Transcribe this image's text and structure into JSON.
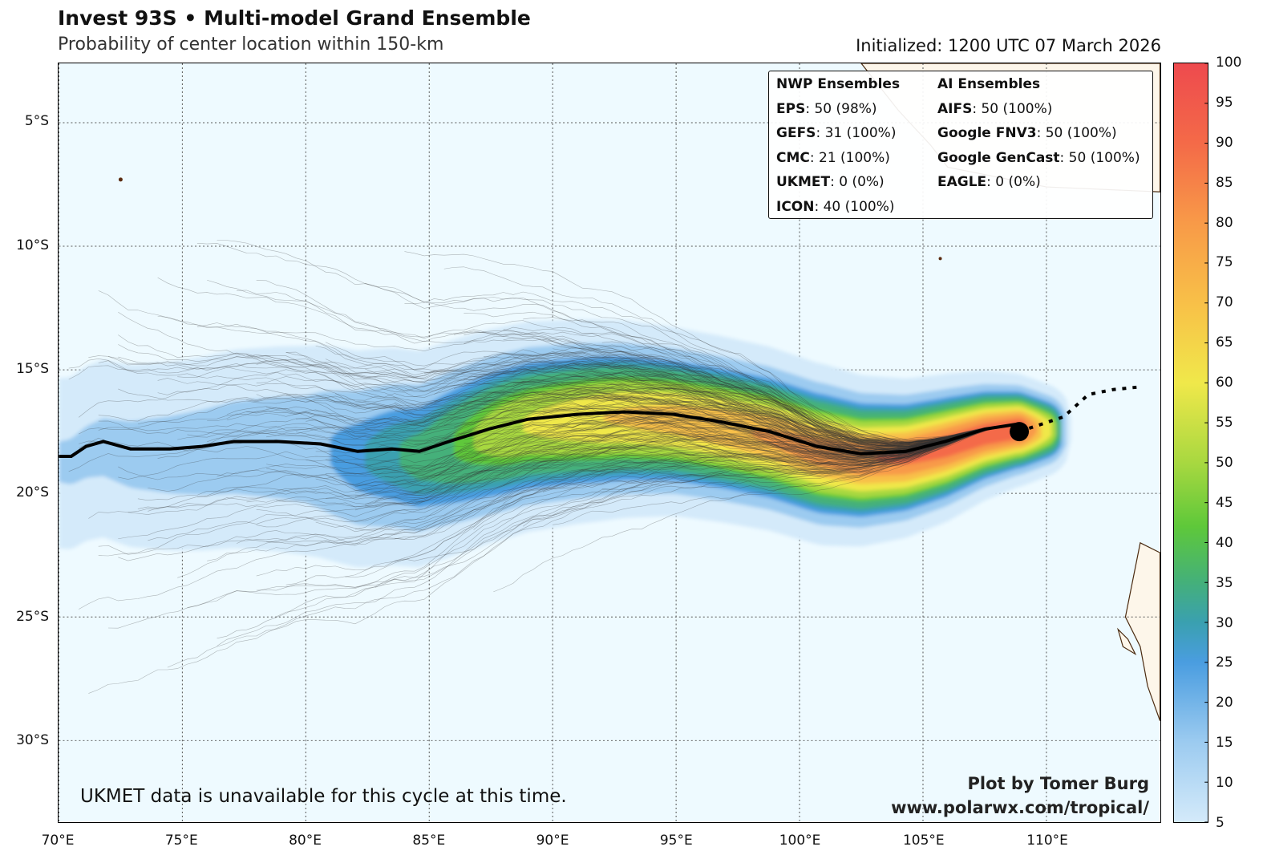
{
  "header": {
    "title": "Invest 93S • Multi-model Grand Ensemble",
    "subtitle": "Probability of center location within 150-km",
    "initialized": "Initialized: 1200 UTC 07 March 2026"
  },
  "map": {
    "lon_range": [
      70,
      114.6
    ],
    "lat_range": [
      -33.3,
      -2.6
    ],
    "lat_ticks": [
      {
        "v": -5,
        "label": "5°S"
      },
      {
        "v": -10,
        "label": "10°S"
      },
      {
        "v": -15,
        "label": "15°S"
      },
      {
        "v": -20,
        "label": "20°S"
      },
      {
        "v": -25,
        "label": "25°S"
      },
      {
        "v": -30,
        "label": "30°S"
      }
    ],
    "lon_ticks": [
      {
        "v": 70,
        "label": "70°E"
      },
      {
        "v": 75,
        "label": "75°E"
      },
      {
        "v": 80,
        "label": "80°E"
      },
      {
        "v": 85,
        "label": "85°E"
      },
      {
        "v": 90,
        "label": "90°E"
      },
      {
        "v": 95,
        "label": "95°E"
      },
      {
        "v": 100,
        "label": "100°E"
      },
      {
        "v": 105,
        "label": "105°E"
      },
      {
        "v": 110,
        "label": "110°E"
      }
    ],
    "mean_track": [
      [
        70,
        -18.5
      ],
      [
        70.5,
        -18.5
      ],
      [
        71.1,
        -18.1
      ],
      [
        71.8,
        -17.9
      ],
      [
        72.9,
        -18.2
      ],
      [
        74.5,
        -18.2
      ],
      [
        75.8,
        -18.1
      ],
      [
        77.1,
        -17.9
      ],
      [
        78.9,
        -17.9
      ],
      [
        80.6,
        -18.0
      ],
      [
        82.1,
        -18.3
      ],
      [
        83.5,
        -18.2
      ],
      [
        84.6,
        -18.3
      ],
      [
        85.8,
        -17.9
      ],
      [
        87.4,
        -17.4
      ],
      [
        89.0,
        -17.0
      ],
      [
        91.0,
        -16.8
      ],
      [
        92.9,
        -16.7
      ],
      [
        94.9,
        -16.8
      ],
      [
        96.8,
        -17.1
      ],
      [
        98.8,
        -17.5
      ],
      [
        100.7,
        -18.1
      ],
      [
        102.5,
        -18.4
      ],
      [
        104.3,
        -18.3
      ],
      [
        105.9,
        -17.9
      ],
      [
        107.5,
        -17.4
      ],
      [
        108.8,
        -17.2
      ]
    ],
    "current_position": [
      108.9,
      -17.5
    ],
    "forecast_track": [
      [
        108.9,
        -17.5
      ],
      [
        110.7,
        -16.9
      ],
      [
        111.7,
        -16.0
      ],
      [
        112.7,
        -15.8
      ],
      [
        113.7,
        -15.7
      ]
    ],
    "colors": {
      "ocean": "#eefaff",
      "land": "#fdf6ea",
      "coast": "#4a2a10",
      "track": "#000000"
    }
  },
  "legend": {
    "nwp_title": "NWP Ensembles",
    "ai_title": "AI Ensembles",
    "nwp": [
      {
        "name": "EPS",
        "value": ": 50 (98%)"
      },
      {
        "name": "GEFS",
        "value": ": 31 (100%)"
      },
      {
        "name": "CMC",
        "value": ": 21 (100%)"
      },
      {
        "name": "UKMET",
        "value": ": 0 (0%)"
      },
      {
        "name": "ICON",
        "value": ": 40 (100%)"
      }
    ],
    "ai": [
      {
        "name": "AIFS",
        "value": ": 50 (100%)"
      },
      {
        "name": "Google FNV3",
        "value": ": 50 (100%)"
      },
      {
        "name": "Google GenCast",
        "value": ": 50 (100%)"
      },
      {
        "name": "EAGLE",
        "value": ": 0 (0%)"
      }
    ]
  },
  "note": "UKMET data is unavailable for this cycle at this time.",
  "credit": {
    "line1": "Plot by Tomer Burg",
    "line2": "www.polarwx.com/tropical/"
  },
  "colorbar": {
    "min": 5,
    "max": 100,
    "ticks": [
      5,
      10,
      15,
      20,
      25,
      30,
      35,
      40,
      45,
      50,
      55,
      60,
      65,
      70,
      75,
      80,
      85,
      90,
      95,
      100
    ],
    "stops": [
      [
        5,
        "#d4eafa"
      ],
      [
        15,
        "#9ccbf0"
      ],
      [
        25,
        "#4a9de0"
      ],
      [
        30,
        "#3aa0b0"
      ],
      [
        35,
        "#44b07a"
      ],
      [
        42,
        "#5ec83a"
      ],
      [
        50,
        "#a8d840"
      ],
      [
        60,
        "#f0e84a"
      ],
      [
        70,
        "#f8c048"
      ],
      [
        80,
        "#f89a48"
      ],
      [
        90,
        "#f46a48"
      ],
      [
        100,
        "#ee4a4e"
      ]
    ]
  }
}
